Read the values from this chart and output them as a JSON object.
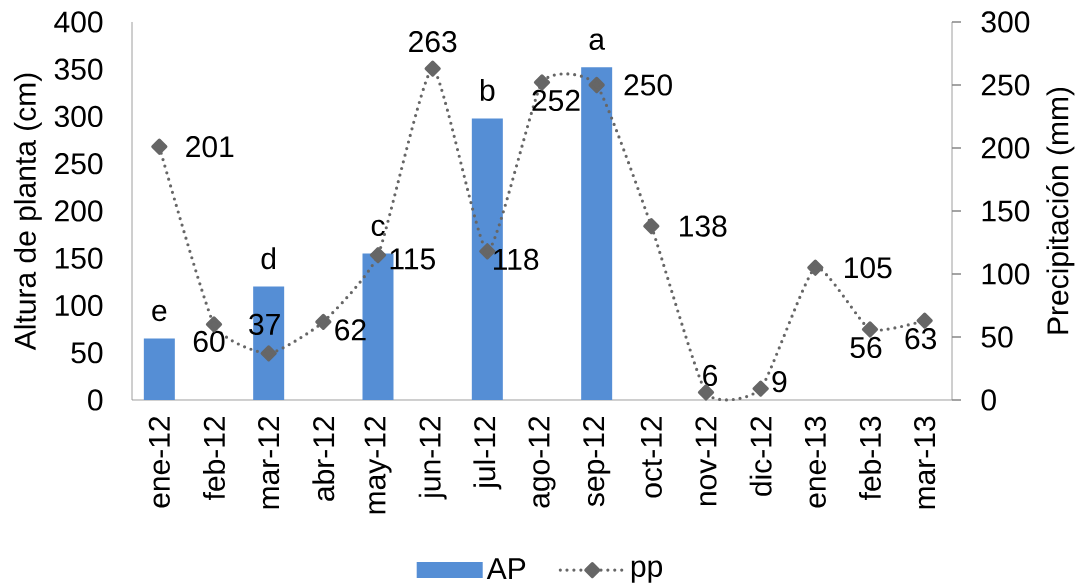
{
  "chart_data": {
    "type": "bar",
    "ylabel": "Altura de planta (cm)",
    "y2label": "Precipitación (mm)",
    "categories": [
      "ene-12",
      "feb-12",
      "mar-12",
      "abr-12",
      "may-12",
      "jun-12",
      "jul-12",
      "ago-12",
      "sep-12",
      "oct-12",
      "nov-12",
      "dic-12",
      "ene-13",
      "feb-13",
      "mar-13"
    ],
    "series": [
      {
        "name": "AP",
        "color": "#558ed5",
        "values": [
          65,
          null,
          120,
          null,
          155,
          null,
          298,
          null,
          352,
          null,
          null,
          null,
          null,
          null,
          null
        ],
        "value_labels": [
          "e",
          null,
          "d",
          null,
          "c",
          null,
          "b",
          null,
          "a",
          null,
          null,
          null,
          null,
          null,
          null
        ]
      },
      {
        "name": "pp",
        "type": "line",
        "axis": "y2",
        "color": "#666666",
        "marker": "diamond",
        "line_style": "dotted",
        "values": [
          201,
          60,
          37,
          62,
          115,
          263,
          118,
          252,
          250,
          138,
          6,
          9,
          105,
          56,
          63
        ],
        "value_labels": [
          "201",
          "60",
          "37",
          "62",
          "115",
          "263",
          "118",
          "252",
          "250",
          "138",
          "6",
          "9",
          "105",
          "56",
          "63"
        ]
      }
    ],
    "ylim": [
      0,
      400
    ],
    "yticks": [
      0,
      50,
      100,
      150,
      200,
      250,
      300,
      350,
      400
    ],
    "y2lim": [
      0,
      300
    ],
    "y2ticks": [
      0,
      50,
      100,
      150,
      200,
      250,
      300
    ],
    "legend": "bottom"
  }
}
